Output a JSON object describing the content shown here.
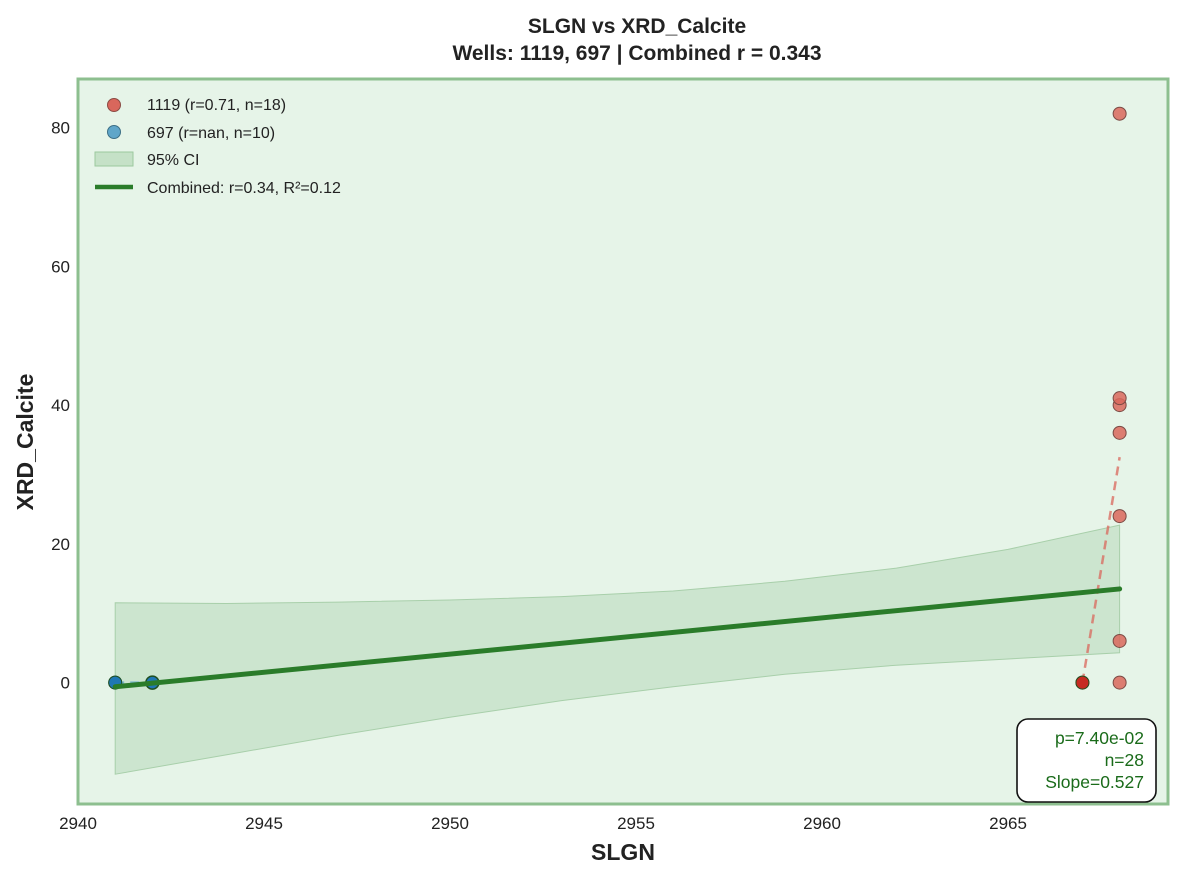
{
  "chart_data": {
    "type": "scatter",
    "title": "SLGN vs XRD_Calcite",
    "subtitle": "Wells: 1119, 697 | Combined r = 0.343",
    "xlabel": "SLGN",
    "ylabel": "XRD_Calcite",
    "xlim": [
      2940,
      2969.3
    ],
    "ylim": [
      -17.5,
      87
    ],
    "xticks": [
      2940,
      2945,
      2950,
      2955,
      2960,
      2965
    ],
    "yticks": [
      0,
      20,
      40,
      60,
      80
    ],
    "grid": false,
    "legend_position": "top-left",
    "colors": {
      "plot_bg": "#e6f4e8",
      "frame": "#8dbf8f",
      "well_1119": "#d9675c",
      "well_697": "#5fa6c9",
      "fit_line": "#2a7c2a",
      "ci_fill": "#b7d9b9",
      "overlap_red": "#c62a22",
      "overlap_green": "#2a7c2a",
      "overlap_blue": "#1f77b4"
    },
    "series": [
      {
        "name": "1119 (r=0.71, n=18)",
        "color": "#d9675c",
        "points": [
          {
            "x": 2967,
            "y": 0
          },
          {
            "x": 2968,
            "y": 0
          },
          {
            "x": 2968,
            "y": 6
          },
          {
            "x": 2968,
            "y": 24
          },
          {
            "x": 2968,
            "y": 36
          },
          {
            "x": 2968,
            "y": 40
          },
          {
            "x": 2968,
            "y": 41
          },
          {
            "x": 2968,
            "y": 82
          }
        ],
        "trend": {
          "x": [
            2967,
            2968
          ],
          "y": [
            0,
            32.5
          ]
        }
      },
      {
        "name": "697 (r=nan, n=10)",
        "color": "#5fa6c9",
        "points": [
          {
            "x": 2941,
            "y": 0
          },
          {
            "x": 2942,
            "y": 0
          }
        ]
      }
    ],
    "combined_fit": {
      "label": "Combined: r=0.34, R²=0.12",
      "x": [
        2941,
        2968
      ],
      "y": [
        -0.6,
        13.5
      ],
      "ci_label": "95% CI",
      "ci_x": [
        2941,
        2944,
        2947,
        2950,
        2953,
        2956,
        2959,
        2962,
        2965,
        2968
      ],
      "ci_upper": [
        11.5,
        11.4,
        11.6,
        11.9,
        12.4,
        13.2,
        14.6,
        16.5,
        19.2,
        22.7
      ],
      "ci_lower": [
        -13.2,
        -10.4,
        -7.6,
        -5.0,
        -2.6,
        -0.6,
        1.2,
        2.5,
        3.4,
        4.3
      ]
    },
    "stats_box": {
      "p": "p=7.40e-02",
      "n": "n=28",
      "slope": "Slope=0.527"
    }
  }
}
